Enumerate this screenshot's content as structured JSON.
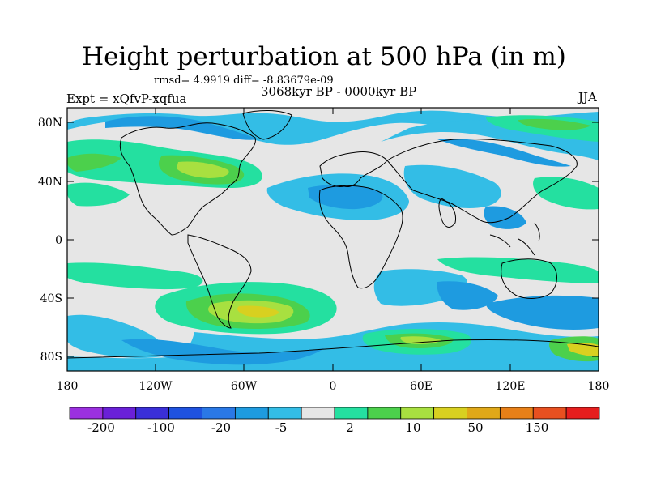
{
  "title": "Height perturbation at 500 hPa (in m)",
  "stats_line": "rmsd= 4.9919 diff= -8.83679e-09",
  "period": "3068kyr BP - 0000kyr BP",
  "experiment": "Expt = xQfvP-xqfua",
  "season": "JJA",
  "lat_labels": [
    "80N",
    "40N",
    "0",
    "40S",
    "80S"
  ],
  "lon_labels": [
    "180",
    "120W",
    "60W",
    "0",
    "60E",
    "120E",
    "180"
  ],
  "colorbar": {
    "labels": [
      "-200",
      "-100",
      "-20",
      "-5",
      "2",
      "10",
      "50",
      "150"
    ],
    "colors": [
      "#9b30e0",
      "#6a20d8",
      "#3a2fd8",
      "#1f52e0",
      "#2a78e6",
      "#1e9be0",
      "#33bde6",
      "#e6e6e6",
      "#24e0a0",
      "#4cd04c",
      "#a8e040",
      "#d8d020",
      "#e0a818",
      "#e88018",
      "#e85020",
      "#e61e1e"
    ]
  },
  "map_colors": {
    "neutral": "#e6e6e6",
    "light_blue": "#33bde6",
    "blue": "#1e9be0",
    "dark_blue": "#2a78e6",
    "teal": "#24e0a0",
    "green": "#4cd04c",
    "yellow_green": "#a8e040",
    "yellow": "#d8d020"
  }
}
